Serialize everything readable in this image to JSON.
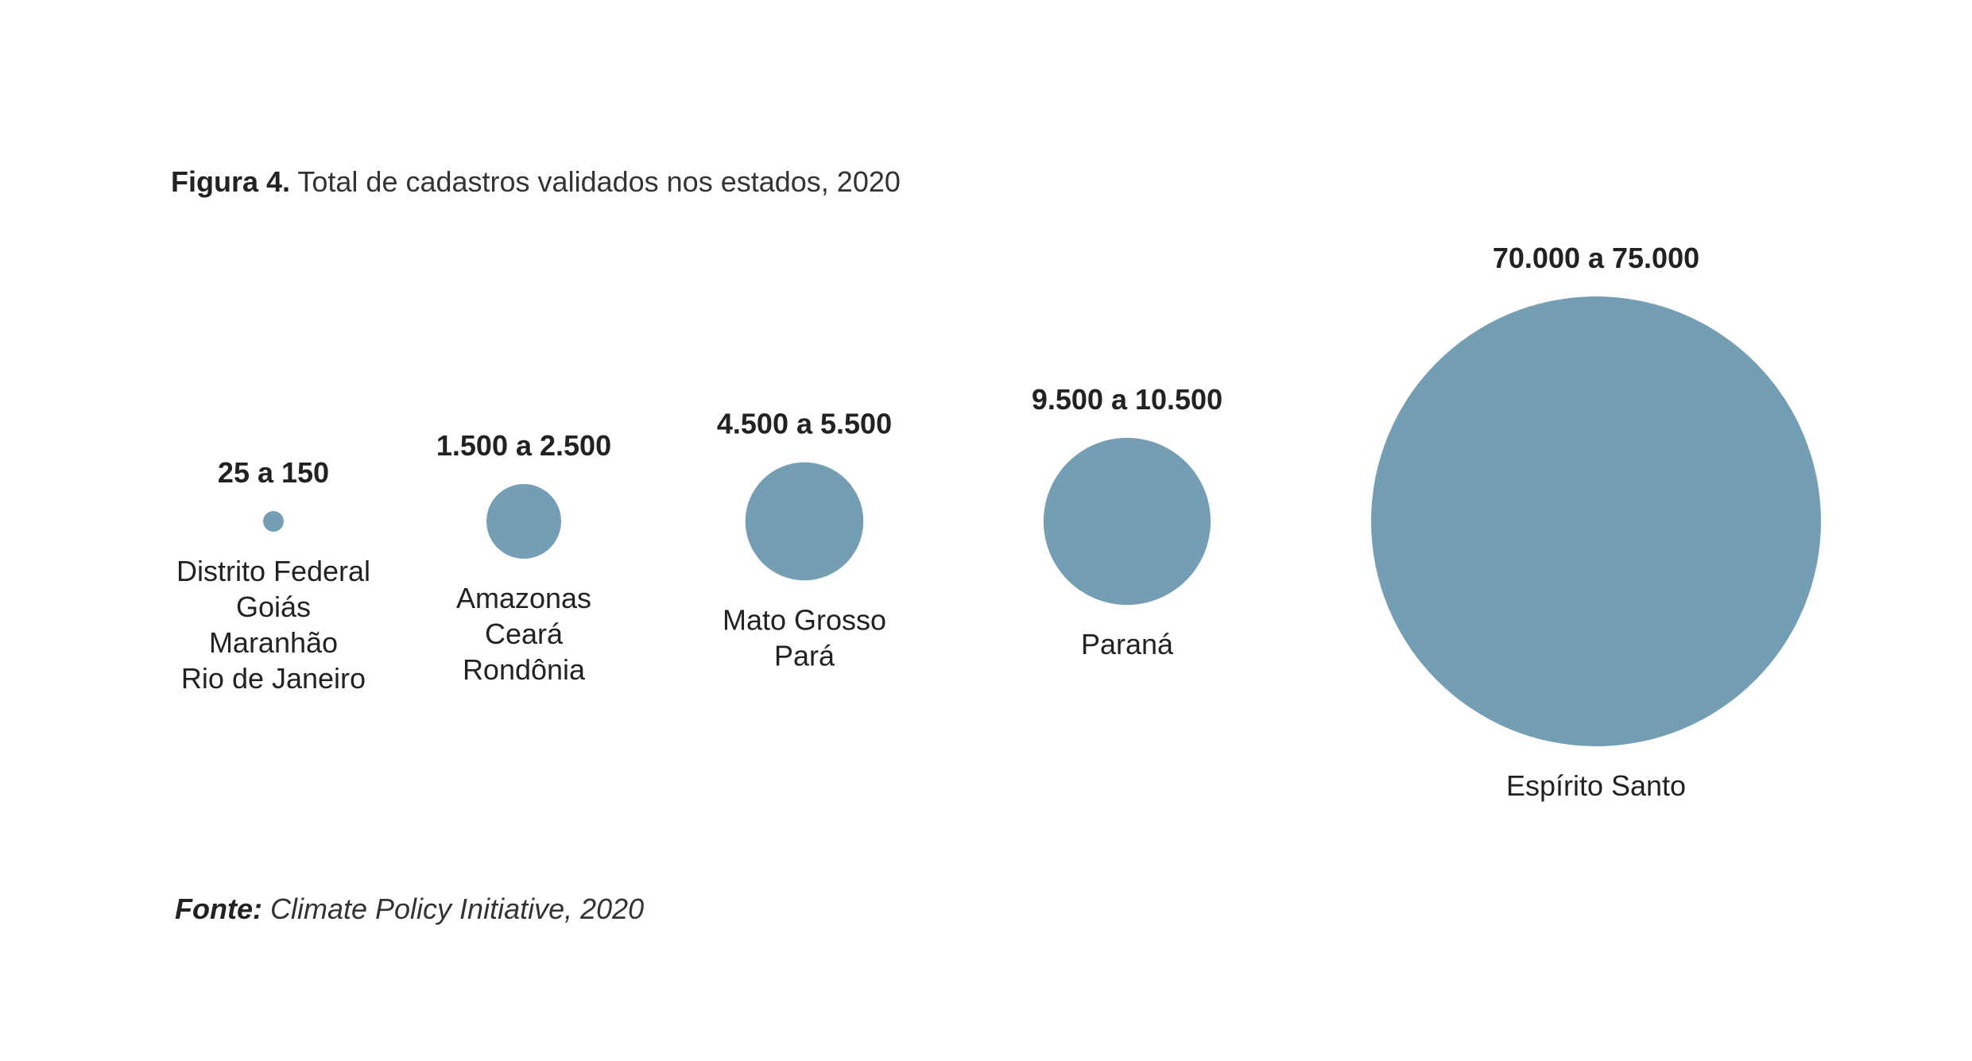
{
  "figure": {
    "label": "Figura 4.",
    "title": "Total de cadastros validados nos estados, 2020"
  },
  "source": {
    "label": "Fonte:",
    "text": "Climate Policy Initiative, 2020"
  },
  "colors": {
    "bubble": "#749eb4",
    "text": "#222222"
  },
  "chart_data": {
    "type": "bubble",
    "title": "Total de cadastros validados nos estados, 2020",
    "value_unit": "",
    "groups": [
      {
        "range_label": "25 a 150",
        "min": 25,
        "max": 150,
        "states": [
          "Distrito Federal",
          "Goiás",
          "Maranhão",
          "Rio de Janeiro"
        ]
      },
      {
        "range_label": "1.500 a 2.500",
        "min": 1500,
        "max": 2500,
        "states": [
          "Amazonas",
          "Ceará",
          "Rondônia"
        ]
      },
      {
        "range_label": "4.500 a 5.500",
        "min": 4500,
        "max": 5500,
        "states": [
          "Mato Grosso",
          "Pará"
        ]
      },
      {
        "range_label": "9.500 a 10.500",
        "min": 9500,
        "max": 10500,
        "states": [
          "Paraná"
        ]
      },
      {
        "range_label": "70.000 a 75.000",
        "min": 70000,
        "max": 75000,
        "states": [
          "Espírito Santo"
        ]
      }
    ]
  }
}
